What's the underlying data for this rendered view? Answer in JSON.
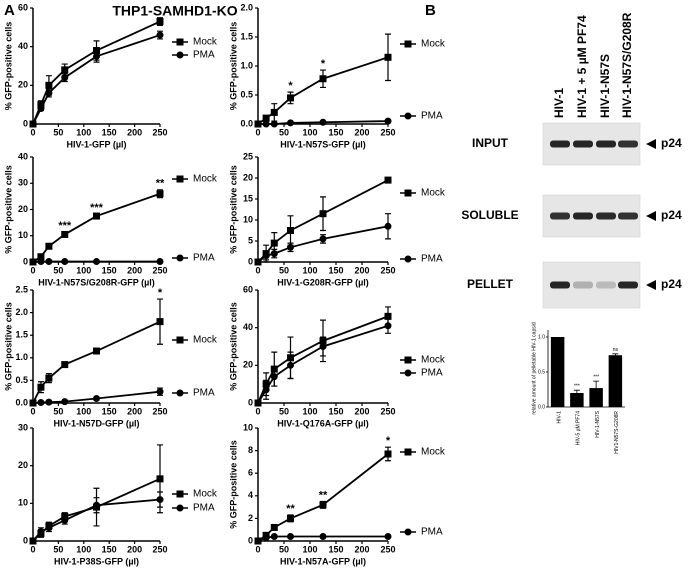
{
  "panel_labels": [
    "A",
    "B"
  ],
  "title": "THP1-SAMHD1-KO",
  "chart_data": [
    {
      "type": "line",
      "xlabel": "HIV-1-GFP (µl)",
      "ylabel": "% GFP-positive cells",
      "xlim": [
        0,
        250
      ],
      "xticks": [
        0,
        50,
        100,
        150,
        200,
        250
      ],
      "ylim": [
        0,
        60
      ],
      "yticks": [
        0,
        20,
        40,
        60
      ],
      "x": [
        0,
        15.6,
        31.3,
        62.5,
        125,
        250
      ],
      "series": [
        {
          "name": "Mock",
          "marker": "square",
          "color": "#000000",
          "values": [
            0,
            10,
            20,
            28,
            38,
            53
          ],
          "errors": [
            0,
            2,
            5,
            3,
            5,
            2
          ]
        },
        {
          "name": "PMA",
          "marker": "circle",
          "color": "#000000",
          "values": [
            0,
            8,
            16,
            24,
            35,
            46
          ],
          "errors": [
            0,
            1,
            2,
            2,
            3,
            2
          ]
        }
      ]
    },
    {
      "type": "line",
      "xlabel": "HIV-1-N57S-GFP (µl)",
      "ylabel": "% GFP-positive cells",
      "xlim": [
        0,
        250
      ],
      "xticks": [
        0,
        50,
        100,
        150,
        200,
        250
      ],
      "ylim": [
        0,
        2
      ],
      "yticks": [
        {
          "value": 0,
          "label": "0.0"
        },
        {
          "value": 0.5,
          "label": "0.5"
        },
        {
          "value": 1,
          "label": "1.0"
        },
        {
          "value": 1.5,
          "label": "1.5"
        },
        {
          "value": 2,
          "label": "2.0"
        }
      ],
      "x": [
        0,
        15.6,
        31.3,
        62.5,
        125,
        250
      ],
      "series": [
        {
          "name": "Mock",
          "marker": "square",
          "color": "#000000",
          "values": [
            0,
            0.1,
            0.2,
            0.45,
            0.78,
            1.15
          ],
          "errors": [
            0,
            0.05,
            0.15,
            0.1,
            0.15,
            0.4
          ]
        },
        {
          "name": "PMA",
          "marker": "circle",
          "color": "#000000",
          "values": [
            0,
            0,
            0,
            0.02,
            0.03,
            0.05
          ],
          "errors": [
            0,
            0,
            0,
            0,
            0,
            0
          ]
        }
      ],
      "annotations": [
        {
          "x": 62.5,
          "text": "*"
        },
        {
          "x": 125,
          "text": "*"
        }
      ]
    },
    {
      "type": "line",
      "xlabel": "HIV-1-N57S/G208R-GFP (µl)",
      "ylabel": "% GFP-positive cells",
      "xlim": [
        0,
        250
      ],
      "xticks": [
        0,
        50,
        100,
        150,
        200,
        250
      ],
      "ylim": [
        0,
        40
      ],
      "yticks": [
        0,
        10,
        20,
        30,
        40
      ],
      "x": [
        0,
        15.6,
        31.3,
        62.5,
        125,
        250
      ],
      "series": [
        {
          "name": "Mock",
          "marker": "square",
          "color": "#000000",
          "values": [
            0,
            2,
            6,
            10.5,
            17.5,
            26
          ],
          "errors": [
            0,
            0.5,
            0.7,
            0.8,
            0.8,
            1.5
          ]
        },
        {
          "name": "PMA",
          "marker": "circle",
          "color": "#000000",
          "values": [
            0,
            0.2,
            0.2,
            0.2,
            0.2,
            0.2
          ],
          "errors": [
            0,
            0,
            0,
            0,
            0,
            0
          ]
        }
      ],
      "annotations": [
        {
          "x": 62.5,
          "text": "***"
        },
        {
          "x": 125,
          "text": "***"
        },
        {
          "x": 250,
          "text": "**"
        }
      ]
    },
    {
      "type": "line",
      "xlabel": "HIV-1-G208R-GFP (µl)",
      "ylabel": "% GFP-positive cells",
      "xlim": [
        0,
        250
      ],
      "xticks": [
        0,
        50,
        100,
        150,
        200,
        250
      ],
      "ylim": [
        0,
        25
      ],
      "yticks": [
        0,
        5,
        10,
        15,
        20,
        25
      ],
      "x": [
        0,
        15.6,
        31.3,
        62.5,
        125,
        250
      ],
      "series": [
        {
          "name": "Mock",
          "marker": "square",
          "color": "#000000",
          "values": [
            0,
            2,
            4.5,
            7.5,
            11.5,
            19.5
          ],
          "errors": [
            0,
            2,
            2.5,
            3.5,
            4,
            0.5
          ]
        },
        {
          "name": "PMA",
          "marker": "circle",
          "color": "#000000",
          "values": [
            0,
            1.5,
            2,
            3.5,
            5.5,
            8.5
          ],
          "errors": [
            0,
            1,
            1,
            1,
            1,
            3
          ]
        }
      ]
    },
    {
      "type": "line",
      "xlabel": "HIV-1-N57D-GFP (µl)",
      "ylabel": "% GFP-positive cells",
      "xlim": [
        0,
        250
      ],
      "xticks": [
        0,
        50,
        100,
        150,
        200,
        250
      ],
      "ylim": [
        0,
        2.5
      ],
      "yticks": [
        {
          "value": 0,
          "label": "0.0"
        },
        {
          "value": 0.5,
          "label": "0.5"
        },
        {
          "value": 1,
          "label": "1.0"
        },
        {
          "value": 1.5,
          "label": "1.5"
        },
        {
          "value": 2,
          "label": "2.0"
        },
        {
          "value": 2.5,
          "label": "2.5"
        }
      ],
      "x": [
        0,
        15.6,
        31.3,
        62.5,
        125,
        250
      ],
      "series": [
        {
          "name": "Mock",
          "marker": "square",
          "color": "#000000",
          "values": [
            0,
            0.35,
            0.55,
            0.85,
            1.15,
            1.8
          ],
          "errors": [
            0,
            0.12,
            0.1,
            0.05,
            0.05,
            0.5
          ]
        },
        {
          "name": "PMA",
          "marker": "circle",
          "color": "#000000",
          "values": [
            0,
            0.01,
            0.02,
            0.03,
            0.1,
            0.25
          ],
          "errors": [
            0,
            0,
            0,
            0,
            0,
            0.08
          ]
        }
      ],
      "annotations": [
        {
          "x": 250,
          "text": "*"
        }
      ]
    },
    {
      "type": "line",
      "xlabel": "HIV-1-Q176A-GFP (µl)",
      "ylabel": "% GFP-positive cells",
      "xlim": [
        0,
        250
      ],
      "xticks": [
        0,
        50,
        100,
        150,
        200,
        250
      ],
      "ylim": [
        0,
        60
      ],
      "yticks": [
        0,
        20,
        40,
        60
      ],
      "x": [
        0,
        15.6,
        31.3,
        62.5,
        125,
        250
      ],
      "series": [
        {
          "name": "Mock",
          "marker": "square",
          "color": "#000000",
          "values": [
            0,
            10,
            18,
            24,
            33,
            46
          ],
          "errors": [
            0,
            6,
            9,
            11,
            11,
            5
          ]
        },
        {
          "name": "PMA",
          "marker": "circle",
          "color": "#000000",
          "values": [
            0,
            7,
            14,
            20,
            30,
            41
          ],
          "errors": [
            0,
            5,
            5,
            7,
            5,
            4
          ]
        }
      ]
    },
    {
      "type": "line",
      "xlabel": "HIV-1-P38S-GFP (µl)",
      "xlim": [
        0,
        250
      ],
      "xticks": [
        0,
        50,
        100,
        150,
        200,
        250
      ],
      "ylim": [
        0,
        30
      ],
      "yticks": [
        0,
        10,
        20,
        30
      ],
      "x": [
        0,
        15.6,
        31.3,
        62.5,
        125,
        250
      ],
      "series": [
        {
          "name": "Mock",
          "marker": "square",
          "color": "#000000",
          "values": [
            0,
            2,
            4,
            6.5,
            9,
            16.5
          ],
          "errors": [
            0,
            1,
            1,
            1,
            5,
            9
          ]
        },
        {
          "name": "PMA",
          "marker": "circle",
          "color": "#000000",
          "values": [
            0,
            2.5,
            3.5,
            5.5,
            9.5,
            11
          ],
          "errors": [
            0,
            1,
            1,
            1,
            2,
            2
          ]
        }
      ]
    },
    {
      "type": "line",
      "xlabel": "HIV-1-N57A-GFP (µl)",
      "ylabel": "% GFP-positive cells",
      "xlim": [
        0,
        250
      ],
      "xticks": [
        0,
        50,
        100,
        150,
        200,
        250
      ],
      "ylim": [
        0,
        10
      ],
      "yticks": [
        0,
        2,
        4,
        6,
        8,
        10
      ],
      "x": [
        0,
        15.6,
        31.3,
        62.5,
        125,
        250
      ],
      "series": [
        {
          "name": "Mock",
          "marker": "square",
          "color": "#000000",
          "values": [
            0,
            0.5,
            1.2,
            2,
            3.2,
            7.7
          ],
          "errors": [
            0,
            0.2,
            0.2,
            0.3,
            0.3,
            0.6
          ]
        },
        {
          "name": "PMA",
          "marker": "circle",
          "color": "#000000",
          "values": [
            0,
            0.3,
            0.4,
            0.4,
            0.4,
            0.4
          ],
          "errors": [
            0,
            0,
            0,
            0,
            0,
            0
          ]
        }
      ],
      "annotations": [
        {
          "x": 62.5,
          "text": "**"
        },
        {
          "x": 125,
          "text": "**"
        },
        {
          "x": 250,
          "text": "*"
        }
      ]
    },
    {
      "type": "bar",
      "ylabel": "relative amount of pelletable HIV-1 capsid",
      "ylim": [
        0,
        1.1
      ],
      "yticks": [
        {
          "value": 0,
          "label": "0.0"
        },
        {
          "value": 0.5,
          "label": "0.5"
        },
        {
          "value": 1,
          "label": "1.0"
        }
      ],
      "categories": [
        "HIV-1",
        "HIV-5 µM PF74",
        "HIV-1-N57S",
        "HIV1-N57S-G208R"
      ],
      "color": "#000000",
      "values": [
        1,
        0.2,
        0.27,
        0.74
      ],
      "errors": [
        0,
        0.04,
        0.1,
        0.02
      ],
      "significance": [
        null,
        "***",
        "***",
        "ns"
      ]
    }
  ],
  "blot": {
    "columns": [
      "HIV-1",
      "HIV-1 + 5 µM PF74",
      "HIV-1-N57S",
      "HIV-1-N57S/G208R"
    ],
    "rows": [
      "INPUT",
      "SOLUBLE",
      "PELLET"
    ],
    "marker": "p24"
  }
}
